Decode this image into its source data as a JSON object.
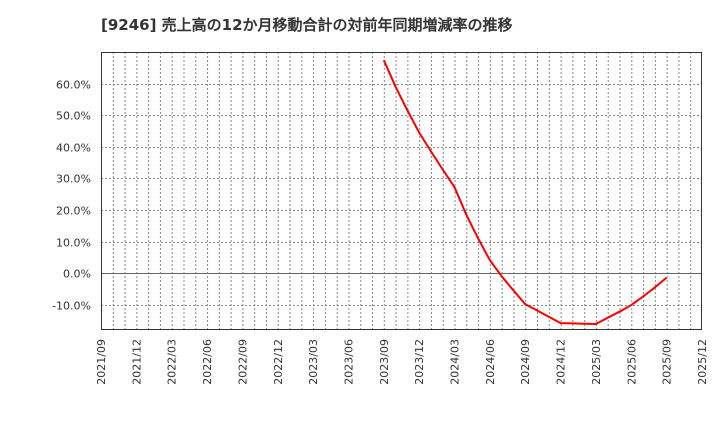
{
  "title": "[9246]  売上高の12か月移動合計の対前年同期増減率の推移",
  "colors": {
    "line": "#ff0000",
    "grid": "#888888",
    "frame": "#333333",
    "text": "#333333",
    "background": "#ffffff"
  },
  "chart_data": {
    "type": "line",
    "title": "[9246]  売上高の12か月移動合計の対前年同期増減率の推移",
    "xlabel": "",
    "ylabel": "",
    "ylim": [
      -18,
      70
    ],
    "grid": true,
    "legend": null,
    "y_ticks": [
      -10,
      0,
      10,
      20,
      30,
      40,
      50,
      60
    ],
    "y_tick_labels": [
      "-10.0%",
      "0.0%",
      "10.0%",
      "20.0%",
      "30.0%",
      "40.0%",
      "50.0%",
      "60.0%"
    ],
    "x_tick_labels": [
      "2021/09",
      "2021/12",
      "2022/03",
      "2022/06",
      "2022/09",
      "2022/12",
      "2023/03",
      "2023/06",
      "2023/09",
      "2023/12",
      "2024/03",
      "2024/06",
      "2024/09",
      "2024/12",
      "2025/03",
      "2025/06",
      "2025/09",
      "2025/12"
    ],
    "series": [
      {
        "name": "売上高12か月移動合計 対前年同期増減率",
        "x": [
          "2023/09",
          "2023/10",
          "2023/11",
          "2023/12",
          "2024/01",
          "2024/02",
          "2024/03",
          "2024/04",
          "2024/05",
          "2024/06",
          "2024/07",
          "2024/08",
          "2024/09",
          "2024/10",
          "2024/11",
          "2024/12",
          "2025/01",
          "2025/02",
          "2025/03",
          "2025/04",
          "2025/05",
          "2025/06",
          "2025/07",
          "2025/08",
          "2025/09"
        ],
        "values": [
          67.4,
          59.0,
          51.5,
          44.5,
          38.5,
          32.8,
          27.2,
          18.5,
          11.0,
          4.1,
          -1.0,
          -5.5,
          -9.8,
          -11.8,
          -13.8,
          -15.8,
          -15.9,
          -16.0,
          -16.1,
          -14.1,
          -12.2,
          -10.1,
          -7.4,
          -4.5,
          -1.4
        ]
      }
    ]
  }
}
